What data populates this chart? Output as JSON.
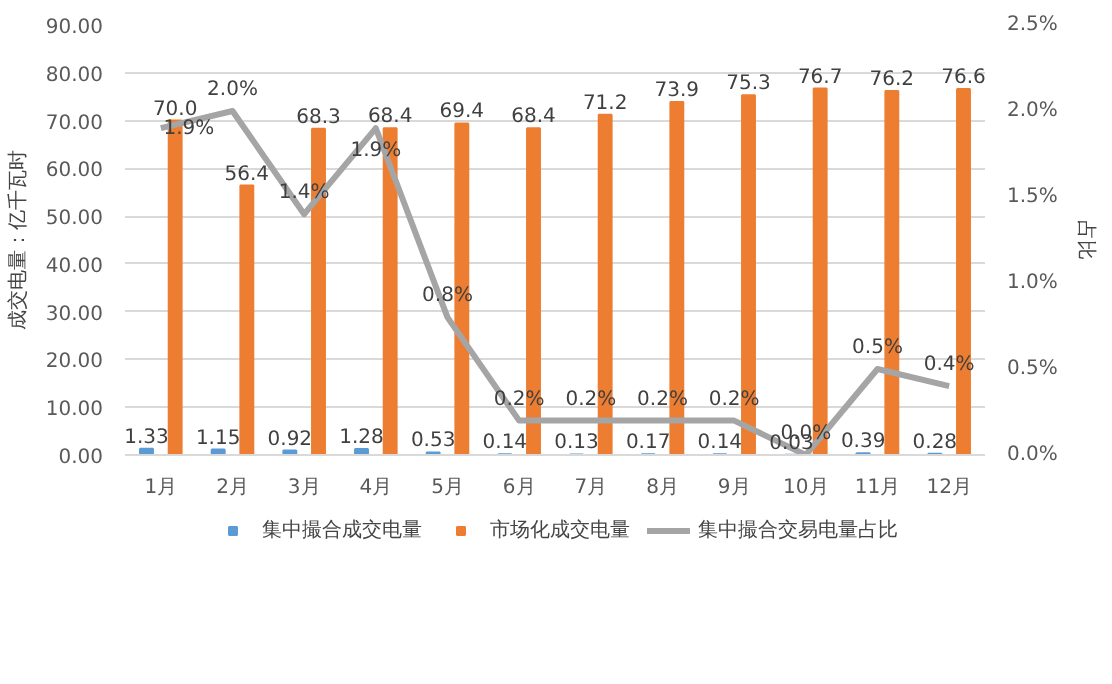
{
  "chart_data": {
    "type": "bar",
    "categories": [
      "1月",
      "2月",
      "3月",
      "4月",
      "5月",
      "6月",
      "7月",
      "8月",
      "9月",
      "10月",
      "11月",
      "12月"
    ],
    "ylabel": "成交电量：亿千瓦时",
    "y2label": "占比",
    "ylim": [
      0,
      90
    ],
    "yticks": [
      {
        "value": 0,
        "label": "0.00"
      },
      {
        "value": 10,
        "label": "10.00"
      },
      {
        "value": 20,
        "label": "20.00"
      },
      {
        "value": 30,
        "label": "30.00"
      },
      {
        "value": 40,
        "label": "40.00"
      },
      {
        "value": 50,
        "label": "50.00"
      },
      {
        "value": 60,
        "label": "60.00"
      },
      {
        "value": 70,
        "label": "70.00"
      },
      {
        "value": 80,
        "label": "80.00"
      },
      {
        "value": 90,
        "label": "90.00"
      }
    ],
    "y2lim": [
      0,
      2.5
    ],
    "y2ticks": [
      {
        "value": 0,
        "label": "0.0%"
      },
      {
        "value": 0.5,
        "label": "0.5%"
      },
      {
        "value": 1.0,
        "label": "1.0%"
      },
      {
        "value": 1.5,
        "label": "1.5%"
      },
      {
        "value": 2.0,
        "label": "2.0%"
      },
      {
        "value": 2.5,
        "label": "2.5%"
      }
    ],
    "grid": "y",
    "legend": "bottom",
    "series": [
      {
        "name": "集中撮合成交电量",
        "color": "#5b9bd5",
        "values": [
          1.33,
          1.15,
          0.92,
          1.28,
          0.53,
          0.14,
          0.13,
          0.17,
          0.14,
          0.03,
          0.39,
          0.28
        ],
        "value_labels": [
          "1.33",
          "1.15",
          "0.92",
          "1.28",
          "0.53",
          "0.14",
          "0.13",
          "0.17",
          "0.14",
          "0.03",
          "0.39",
          "0.28"
        ]
      },
      {
        "name": "市场化成交电量",
        "color": "#ed7d31",
        "values": [
          70.0,
          56.4,
          68.3,
          68.4,
          69.4,
          68.4,
          71.2,
          73.9,
          75.3,
          76.7,
          76.2,
          76.6
        ],
        "value_labels": [
          "70.0",
          "56.4",
          "68.3",
          "68.4",
          "69.4",
          "68.4",
          "71.2",
          "73.9",
          "75.3",
          "76.7",
          "76.2",
          "76.6"
        ]
      },
      {
        "name": "集中撮合交易电量占比",
        "color": "#a5a5a5",
        "type": "line",
        "axis": "y2",
        "values": [
          1.9,
          2.0,
          1.4,
          1.9,
          0.8,
          0.2,
          0.2,
          0.2,
          0.2,
          0.0,
          0.5,
          0.4
        ],
        "value_labels": [
          "1.9%",
          "2.0%",
          "1.4%",
          "1.9%",
          "0.8%",
          "0.2%",
          "0.2%",
          "0.2%",
          "0.2%",
          "0.0%",
          "0.5%",
          "0.4%"
        ]
      }
    ]
  }
}
